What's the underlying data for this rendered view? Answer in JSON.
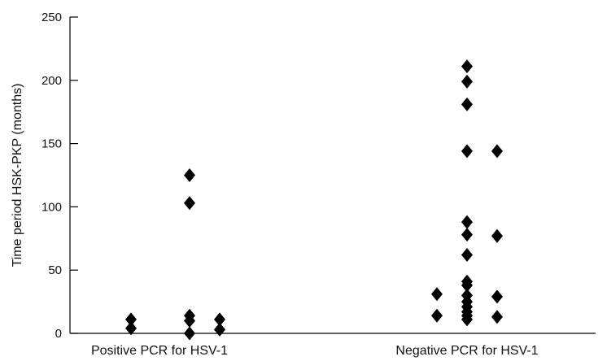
{
  "chart_data": {
    "type": "scatter",
    "title": "",
    "xlabel": "",
    "ylabel": "Time period HSK-PKP (months)",
    "categories": [
      "Positive PCR for HSV-1",
      "Negative PCR for HSV-1"
    ],
    "ylim": [
      0,
      250
    ],
    "yticks": [
      0,
      50,
      100,
      150,
      200,
      250
    ],
    "grid": false,
    "marker": "diamond",
    "marker_color": "#000000",
    "points": [
      {
        "category": "Positive PCR for HSV-1",
        "values": [
          11,
          4,
          125,
          103,
          14,
          10,
          0,
          11,
          3
        ]
      },
      {
        "category": "Negative PCR for HSV-1",
        "values": [
          31,
          14,
          211,
          199,
          181,
          144,
          88,
          78,
          62,
          41,
          38,
          30,
          25,
          21,
          17,
          14,
          11,
          144,
          77,
          29,
          13
        ]
      }
    ]
  }
}
